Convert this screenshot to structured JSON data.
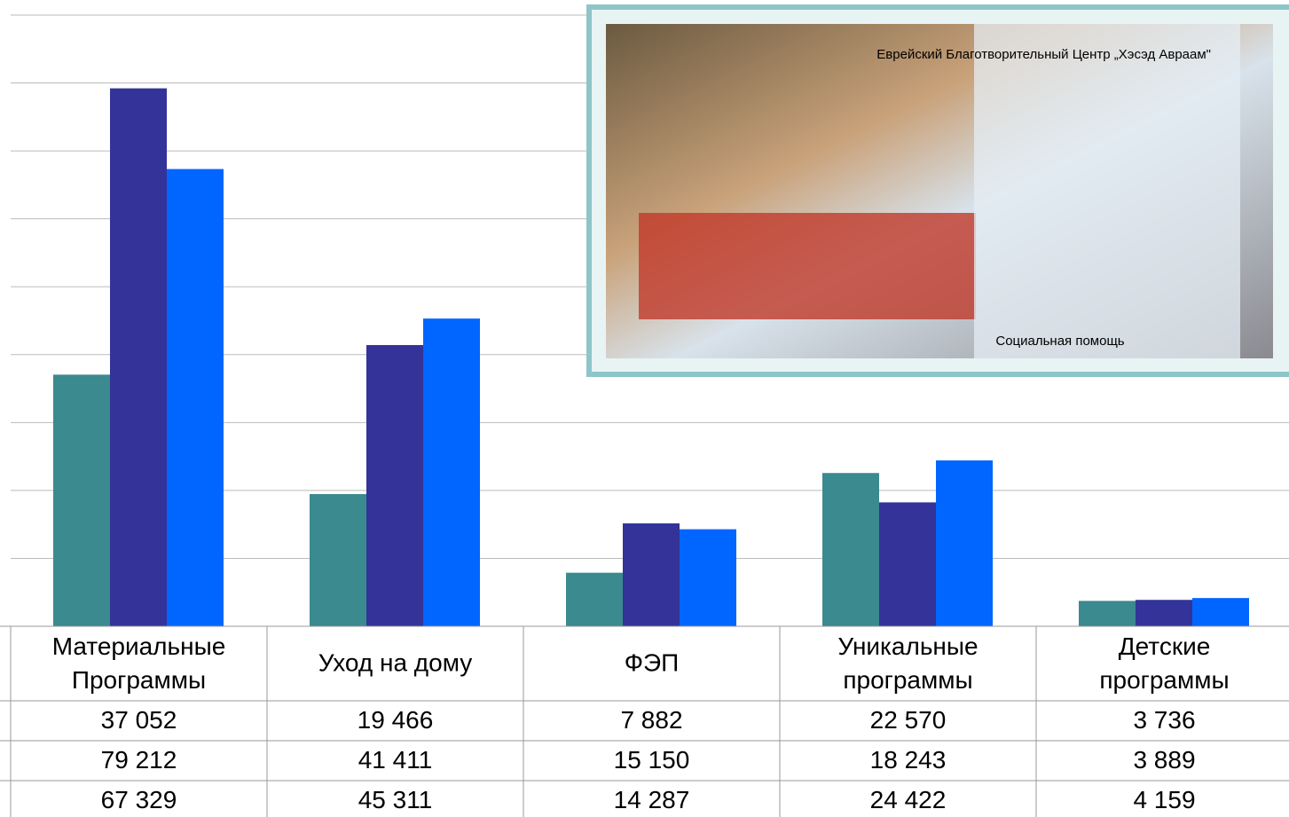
{
  "chart_data": {
    "type": "bar",
    "categories": [
      "Материальные Программы",
      "Уход на дому",
      "ФЭП",
      "Уникальные программы",
      "Детские программы"
    ],
    "series": [
      {
        "color": "#3a8a8f",
        "values": [
          37052,
          19466,
          7882,
          22570,
          3736
        ],
        "value_labels": [
          "37 052",
          "19 466",
          "7 882",
          "22 570",
          "3 736"
        ]
      },
      {
        "color": "#333399",
        "values": [
          79212,
          41411,
          15150,
          18243,
          3889
        ],
        "value_labels": [
          "79 212",
          "41 411",
          "15 150",
          "18 243",
          "3 889"
        ]
      },
      {
        "color": "#0066ff",
        "values": [
          67329,
          45311,
          14287,
          24422,
          4159
        ],
        "value_labels": [
          "67 329",
          "45 311",
          "14 287",
          "24 422",
          "4 159"
        ]
      }
    ],
    "ylim": [
      0,
      90000
    ],
    "yticks": [
      0,
      10000,
      20000,
      30000,
      40000,
      50000,
      60000,
      70000,
      80000,
      90000
    ],
    "grid": true
  },
  "photo": {
    "caption": "Еврейский Благотворительный Центр „Хэсэд Авраам\"",
    "banner": "Социальная помощь"
  }
}
